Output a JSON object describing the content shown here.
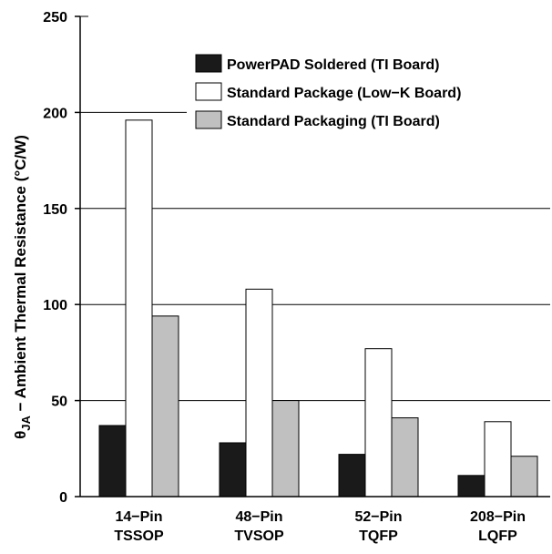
{
  "chart_data": {
    "type": "bar",
    "categories": [
      [
        "14−Pin",
        "TSSOP"
      ],
      [
        "48−Pin",
        "TVSOP"
      ],
      [
        "52−Pin",
        "TQFP"
      ],
      [
        "208−Pin",
        "LQFP"
      ]
    ],
    "series": [
      {
        "name": "PowerPAD Soldered (TI Board)",
        "values": [
          37,
          28,
          22,
          11
        ],
        "color": "#1a1a1a"
      },
      {
        "name": "Standard Package (Low−K Board)",
        "values": [
          196,
          108,
          77,
          39
        ],
        "color": "#ffffff"
      },
      {
        "name": "Standard Packaging (TI Board)",
        "values": [
          94,
          50,
          41,
          21
        ],
        "color": "#c0c0c0"
      }
    ],
    "ylabel_symbol": "θ",
    "ylabel_subscript": "JA",
    "ylabel_rest": " − Ambient Thermal Resistance (°C/W)",
    "ylim": [
      0,
      250
    ],
    "yticks": [
      0,
      50,
      100,
      150,
      200,
      250
    ],
    "grid": "horizontal",
    "legend_position": "top-right"
  }
}
